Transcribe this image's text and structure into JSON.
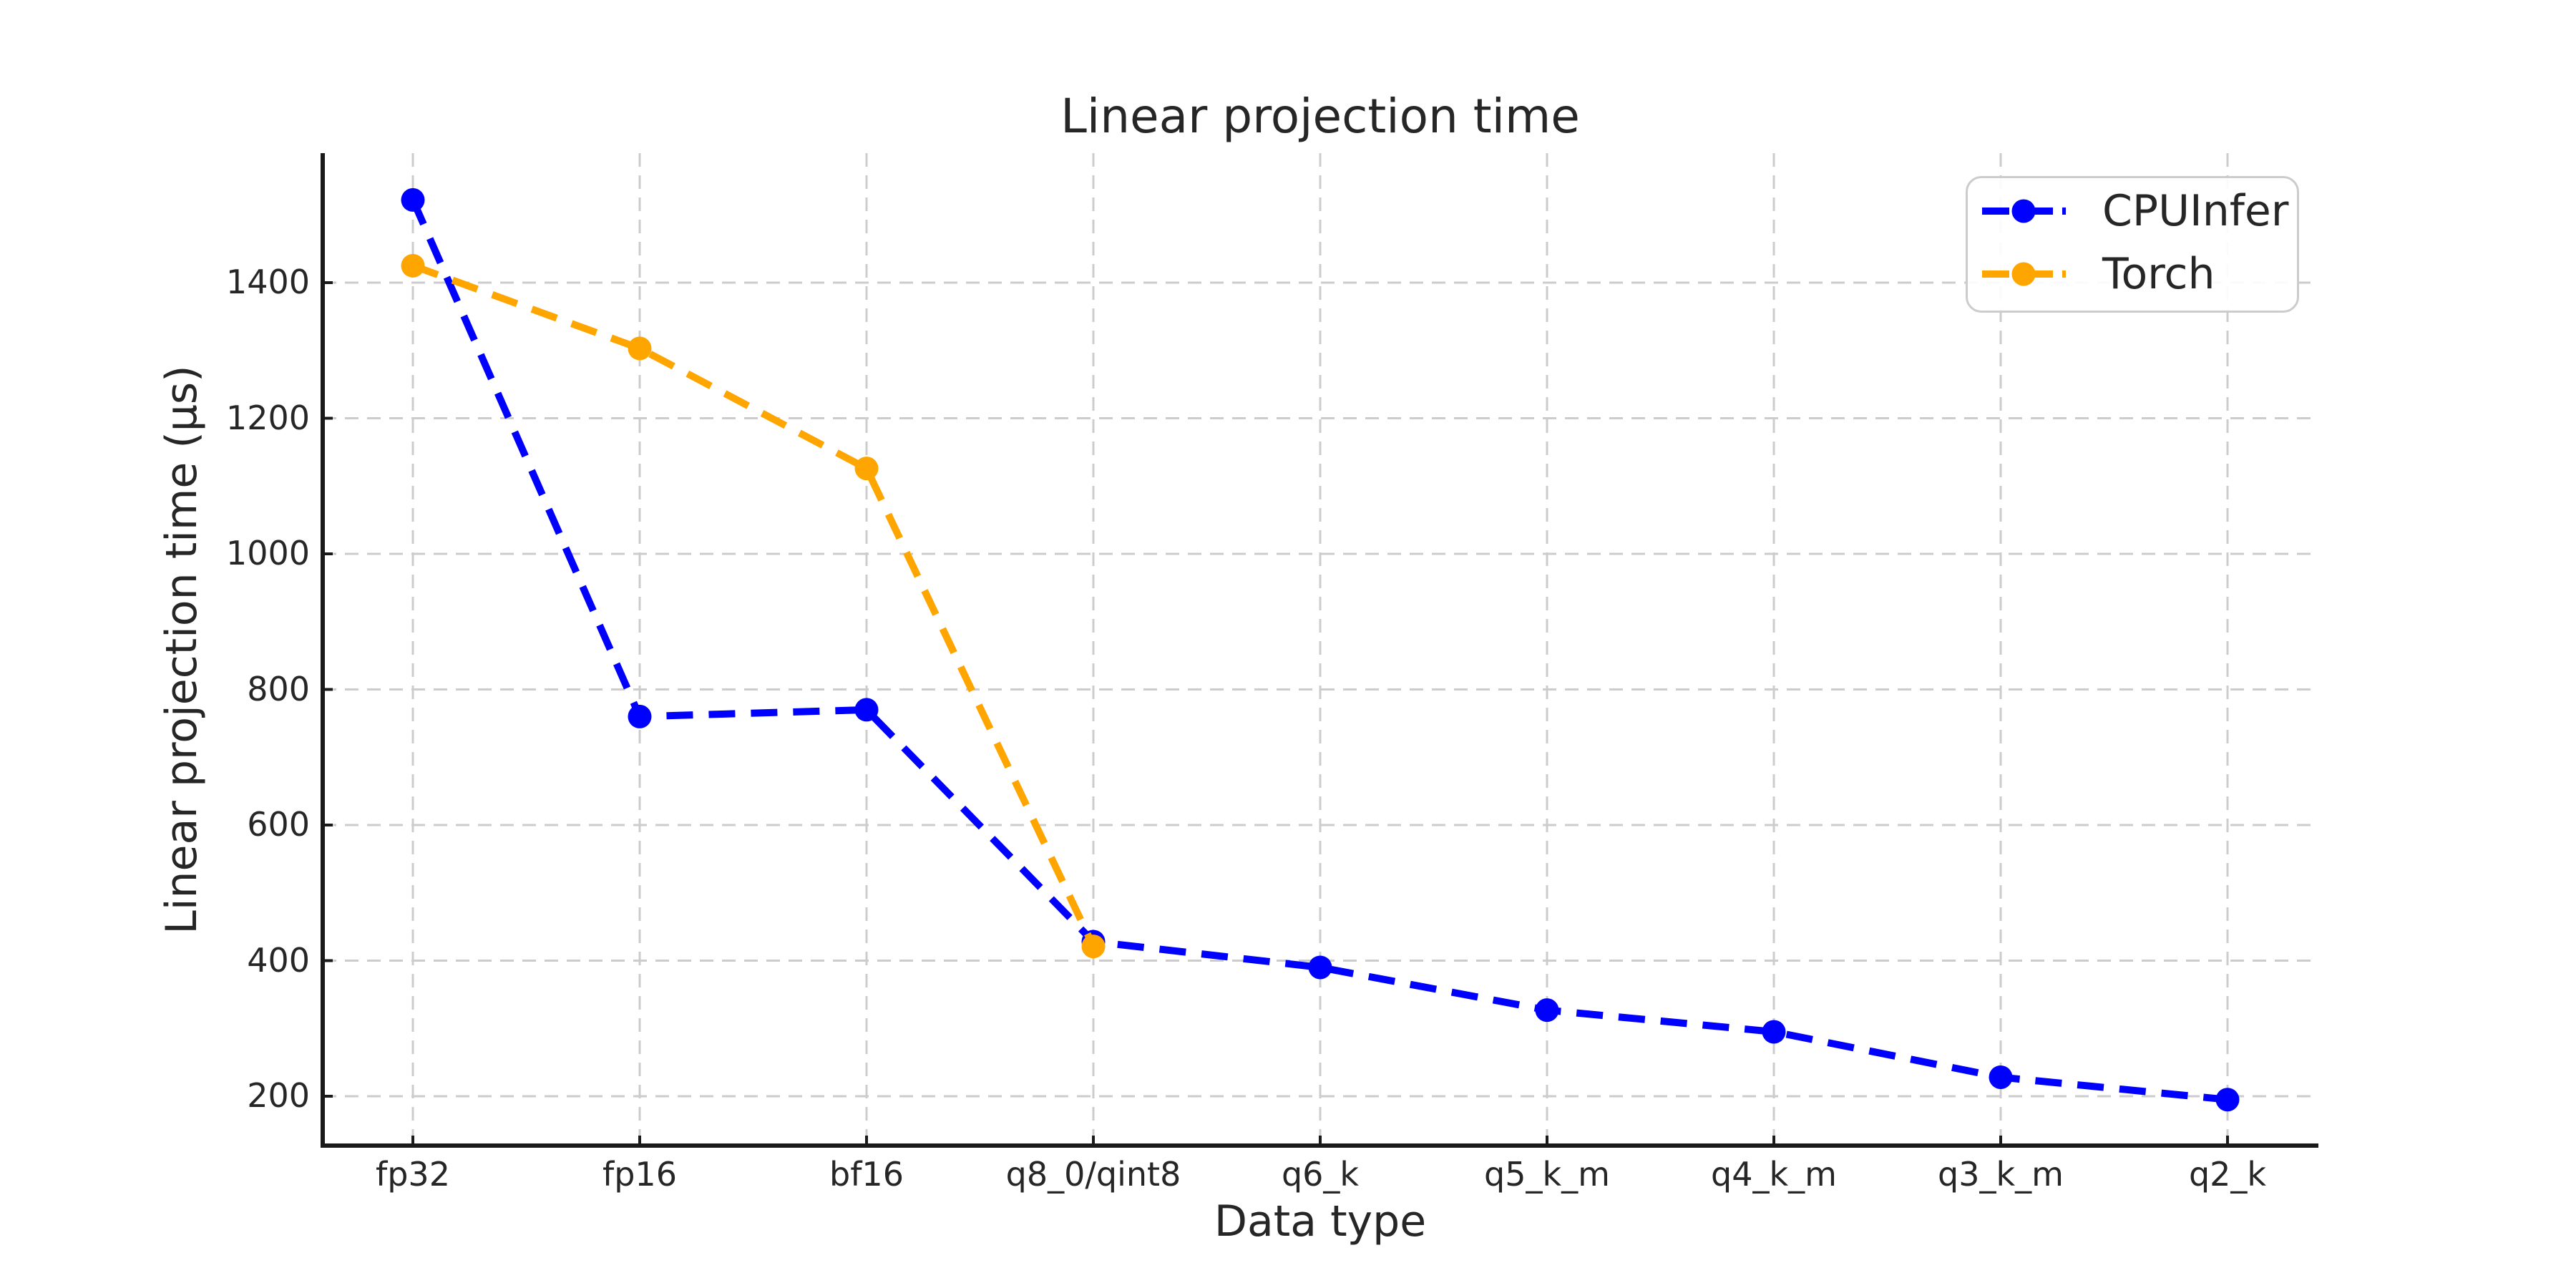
{
  "chart_data": {
    "type": "line",
    "title": "Linear projection time",
    "xlabel": "Data type",
    "ylabel": "Linear projection time (µs)",
    "categories": [
      "fp32",
      "fp16",
      "bf16",
      "q8_0/qint8",
      "q6_k",
      "q5_k_m",
      "q4_k_m",
      "q3_k_m",
      "q2_k"
    ],
    "series": [
      {
        "name": "CPUInfer",
        "color": "#0000ff",
        "values": [
          1522,
          760,
          770,
          428,
          390,
          327,
          295,
          228,
          195
        ]
      },
      {
        "name": "Torch",
        "color": "#ffa500",
        "values": [
          1425,
          1303,
          1126,
          421
        ]
      }
    ],
    "yticks": [
      200,
      400,
      600,
      800,
      1000,
      1200,
      1400
    ],
    "ylim": [
      129,
      1591
    ],
    "grid": true,
    "line_style": "dashed",
    "marker": "circle",
    "legend_position": "upper right"
  },
  "colors": {
    "grid": "#cccccc",
    "spine": "#1a1a1a",
    "tick": "#1a1a1a",
    "text": "#262626",
    "background": "#ffffff"
  }
}
